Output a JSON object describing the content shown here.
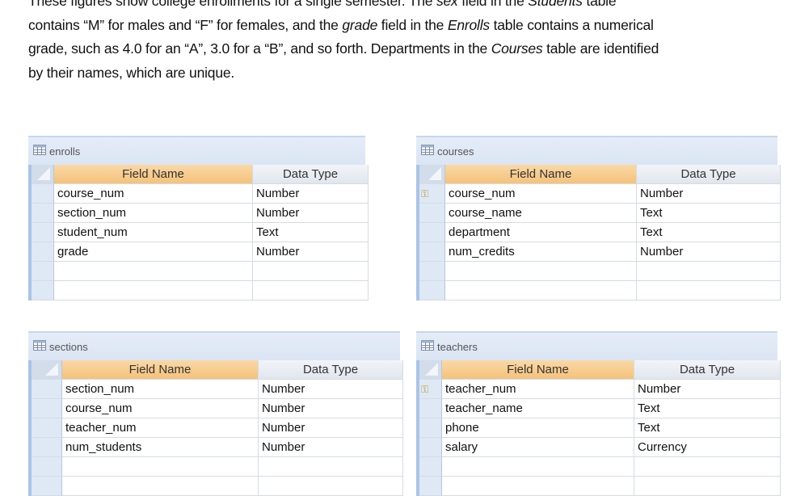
{
  "paragraph": [
    [
      {
        "t": "These figures show college enrollments for a single semester.  The "
      },
      {
        "t": "sex",
        "i": true
      },
      {
        "t": " field in the "
      },
      {
        "t": "Students",
        "i": true
      },
      {
        "t": " table"
      }
    ],
    [
      {
        "t": "contains “M” for males and “F” for females, and the "
      },
      {
        "t": "grade",
        "i": true
      },
      {
        "t": " field in the "
      },
      {
        "t": "Enrolls",
        "i": true
      },
      {
        "t": " table contains a numerical"
      }
    ],
    [
      {
        "t": "grade, such as 4.0 for an “A”, 3.0 for a “B”, and so forth.  Departments in the "
      },
      {
        "t": "Courses",
        "i": true
      },
      {
        "t": " table are identified"
      }
    ],
    [
      {
        "t": "by their names, which are unique."
      }
    ]
  ],
  "headers": {
    "field_name": "Field Name",
    "data_type": "Data Type"
  },
  "tables": [
    {
      "name": "enrolls",
      "rows": [
        [
          "course_num",
          "Number"
        ],
        [
          "section_num",
          "Number"
        ],
        [
          "student_num",
          "Text"
        ],
        [
          "grade",
          "Number"
        ]
      ],
      "key_row": -1
    },
    {
      "name": "courses",
      "rows": [
        [
          "course_num",
          "Number"
        ],
        [
          "course_name",
          "Text"
        ],
        [
          "department",
          "Text"
        ],
        [
          "num_credits",
          "Number"
        ]
      ],
      "key_row": 0
    },
    {
      "name": "sections",
      "rows": [
        [
          "section_num",
          "Number"
        ],
        [
          "course_num",
          "Number"
        ],
        [
          "teacher_num",
          "Number"
        ],
        [
          "num_students",
          "Number"
        ]
      ],
      "key_row": -1
    },
    {
      "name": "teachers",
      "rows": [
        [
          "teacher_num",
          "Number"
        ],
        [
          "teacher_name",
          "Text"
        ],
        [
          "phone",
          "Text"
        ],
        [
          "salary",
          "Currency"
        ]
      ],
      "key_row": 0
    }
  ],
  "colors": {
    "header_field": "#f5c27a",
    "titlebar": "#dbe5f3",
    "selector": "#dfe8f5"
  }
}
